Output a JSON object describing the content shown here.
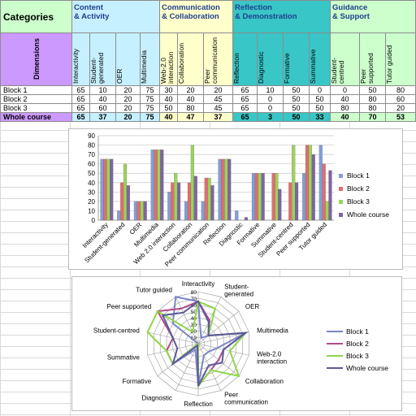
{
  "table": {
    "corner_label": "Categories",
    "dimensions_label": "Dimensions",
    "groups": [
      {
        "label": "Content\n& Activity",
        "color": "#c6f0ff",
        "span": 4
      },
      {
        "label": "Communication\n& Collaboration",
        "color": "#ffffcc",
        "span": 3
      },
      {
        "label": "Reflection\n& Demonstration",
        "color": "#39c6c6",
        "span": 4
      },
      {
        "label": "Guidance\n& Support",
        "color": "#ccffcc",
        "span": 3
      }
    ],
    "columns": [
      "Interactivity",
      "Student-\ngenerated",
      "OER",
      "Multimedia",
      "Web-2.0\ninteraction",
      "Collaboration",
      "Peer\ncommunication",
      "Reflection",
      "Diagnostic",
      "Formative",
      "Summative",
      "Student-centred",
      "Peer supported",
      "Tutor guided"
    ],
    "rows": [
      {
        "label": "Block 1",
        "values": [
          "65",
          "10",
          "20",
          "75",
          "30",
          "20",
          "20",
          "65",
          "10",
          "50",
          "0",
          "0",
          "50",
          "80"
        ]
      },
      {
        "label": "Block 2",
        "values": [
          "65",
          "40",
          "20",
          "75",
          "40",
          "40",
          "45",
          "65",
          "0",
          "50",
          "50",
          "40",
          "80",
          "60"
        ]
      },
      {
        "label": "Block 3",
        "values": [
          "65",
          "60",
          "20",
          "75",
          "50",
          "80",
          "45",
          "65",
          "0",
          "50",
          "50",
          "80",
          "80",
          "20"
        ]
      },
      {
        "label": "Whole course",
        "values": [
          "65",
          "37",
          "20",
          "75",
          "40",
          "47",
          "37",
          "65",
          "3",
          "50",
          "33",
          "40",
          "70",
          "53"
        ]
      }
    ]
  },
  "chart_data": [
    {
      "type": "bar",
      "categories": [
        "Interactivity",
        "Student-generated",
        "OER",
        "Multimedia",
        "Web 2.0 interaction",
        "Collaboration",
        "Peer communication",
        "Reflection",
        "Diagnostic",
        "Formative",
        "Summative",
        "Student-centred",
        "Peer supported",
        "Tutor guided"
      ],
      "series": [
        {
          "name": "Block 1",
          "color": "#7f9fd8",
          "values": [
            65,
            10,
            20,
            75,
            30,
            20,
            20,
            65,
            10,
            50,
            0,
            0,
            50,
            80
          ]
        },
        {
          "name": "Block 2",
          "color": "#e46c6c",
          "values": [
            65,
            40,
            20,
            75,
            40,
            40,
            45,
            65,
            0,
            50,
            50,
            40,
            80,
            60
          ]
        },
        {
          "name": "Block 3",
          "color": "#9bd35a",
          "values": [
            65,
            60,
            20,
            75,
            50,
            80,
            45,
            65,
            0,
            50,
            50,
            80,
            80,
            20
          ]
        },
        {
          "name": "Whole course",
          "color": "#8064a2",
          "values": [
            65,
            37,
            20,
            75,
            40,
            47,
            37,
            65,
            3,
            50,
            33,
            40,
            70,
            53
          ]
        }
      ],
      "ylim": [
        0,
        90
      ],
      "yticks": [
        0,
        10,
        20,
        30,
        40,
        50,
        60,
        70,
        80,
        90
      ],
      "grid": true,
      "legend": "right"
    },
    {
      "type": "radar",
      "categories": [
        "Interactivity",
        "Student-\ngenerated",
        "OER",
        "Multimedia",
        "Web-2.0\ninteraction",
        "Collaboration",
        "Peer\ncommunication",
        "Reflection",
        "Diagnostic",
        "Formative",
        "Summative",
        "Student-centred",
        "Peer supported",
        "Tutor guided"
      ],
      "series": [
        {
          "name": "Block 1",
          "color": "#7b86c6",
          "values": [
            65,
            10,
            20,
            75,
            30,
            20,
            20,
            65,
            10,
            50,
            0,
            0,
            50,
            80
          ]
        },
        {
          "name": "Block 2",
          "color": "#b04a8a",
          "values": [
            65,
            40,
            20,
            75,
            40,
            40,
            45,
            65,
            0,
            50,
            50,
            40,
            80,
            60
          ]
        },
        {
          "name": "Block 3",
          "color": "#8fd64a",
          "values": [
            65,
            60,
            20,
            75,
            50,
            80,
            45,
            65,
            0,
            50,
            50,
            80,
            80,
            20
          ]
        },
        {
          "name": "Whole course",
          "color": "#5a5a9a",
          "values": [
            65,
            37,
            20,
            75,
            40,
            47,
            37,
            65,
            3,
            50,
            33,
            40,
            70,
            53
          ]
        }
      ],
      "rlim": [
        0,
        80
      ],
      "rticks": [
        0,
        10,
        20,
        30,
        40,
        50,
        60,
        70,
        80
      ],
      "legend": "right"
    }
  ]
}
